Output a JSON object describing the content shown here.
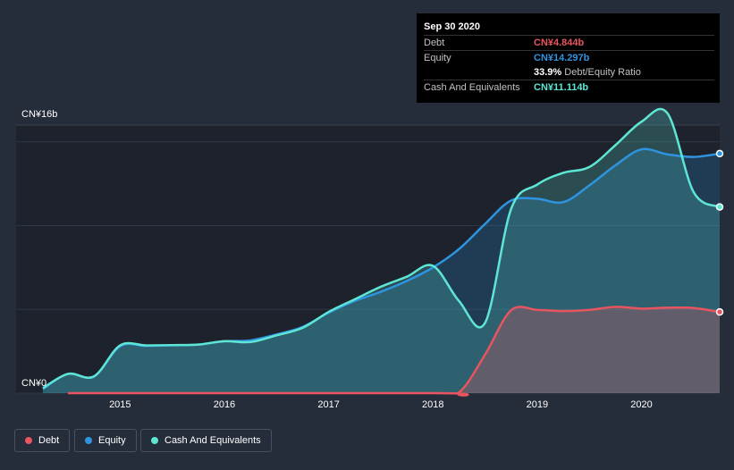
{
  "tooltip": {
    "date": "Sep 30 2020",
    "debt_label": "Debt",
    "debt_value": "CN¥4.844b",
    "equity_label": "Equity",
    "equity_value": "CN¥14.297b",
    "ratio_value": "33.9%",
    "ratio_label": "Debt/Equity Ratio",
    "cash_label": "Cash And Equivalents",
    "cash_value": "CN¥11.114b"
  },
  "legend": {
    "debt": "Debt",
    "equity": "Equity",
    "cash": "Cash And Equivalents"
  },
  "colors": {
    "debt": "#e8545f",
    "equity": "#2f94e0",
    "cash": "#5ee6d4",
    "background": "#252c3a",
    "plot_background": "#1d222d"
  },
  "chart_data": {
    "type": "area",
    "y_tick_labels": [
      "CN¥16b",
      "CN¥0"
    ],
    "ylim": [
      0,
      16
    ],
    "x_tick_labels": [
      "2015",
      "2016",
      "2017",
      "2018",
      "2019",
      "2020"
    ],
    "x_ticks": [
      2015,
      2016,
      2017,
      2018,
      2019,
      2020
    ],
    "xlim": [
      2014.26,
      2020.75
    ],
    "grid": true,
    "legend_position": "bottom-left",
    "series": [
      {
        "name": "Debt",
        "x": [
          2014.5,
          2018.0,
          2018.25,
          2018.5,
          2018.75,
          2019.0,
          2019.25,
          2019.5,
          2019.75,
          2020.0,
          2020.25,
          2020.5,
          2020.75
        ],
        "y": [
          0.0,
          0.0,
          0.05,
          2.3,
          4.95,
          4.97,
          4.9,
          4.97,
          5.15,
          5.05,
          5.1,
          5.08,
          4.844
        ]
      },
      {
        "name": "Equity",
        "x": [
          2014.26,
          2014.5,
          2014.75,
          2015.0,
          2015.25,
          2015.5,
          2015.75,
          2016.0,
          2016.25,
          2016.5,
          2016.75,
          2017.0,
          2017.25,
          2017.5,
          2017.75,
          2018.0,
          2018.25,
          2018.5,
          2018.75,
          2019.0,
          2019.25,
          2019.5,
          2019.75,
          2020.0,
          2020.25,
          2020.5,
          2020.75
        ],
        "y": [
          0.25,
          1.15,
          1.0,
          2.8,
          2.82,
          2.85,
          2.9,
          3.1,
          3.15,
          3.5,
          3.95,
          4.8,
          5.5,
          6.05,
          6.7,
          7.5,
          8.6,
          10.1,
          11.5,
          11.6,
          11.4,
          12.4,
          13.6,
          14.55,
          14.25,
          14.1,
          14.297
        ]
      },
      {
        "name": "Cash And Equivalents",
        "x": [
          2014.26,
          2014.5,
          2014.75,
          2015.0,
          2015.25,
          2015.5,
          2015.75,
          2016.0,
          2016.25,
          2016.5,
          2016.75,
          2017.0,
          2017.25,
          2017.5,
          2017.75,
          2018.0,
          2018.25,
          2018.5,
          2018.75,
          2019.0,
          2019.25,
          2019.5,
          2019.75,
          2020.0,
          2020.25,
          2020.5,
          2020.75
        ],
        "y": [
          0.3,
          1.15,
          1.0,
          2.85,
          2.85,
          2.87,
          2.9,
          3.1,
          3.05,
          3.45,
          3.9,
          4.85,
          5.6,
          6.35,
          6.95,
          7.6,
          5.5,
          4.2,
          11.0,
          12.45,
          13.15,
          13.5,
          14.8,
          16.2,
          16.7,
          12.0,
          11.114
        ]
      }
    ]
  }
}
